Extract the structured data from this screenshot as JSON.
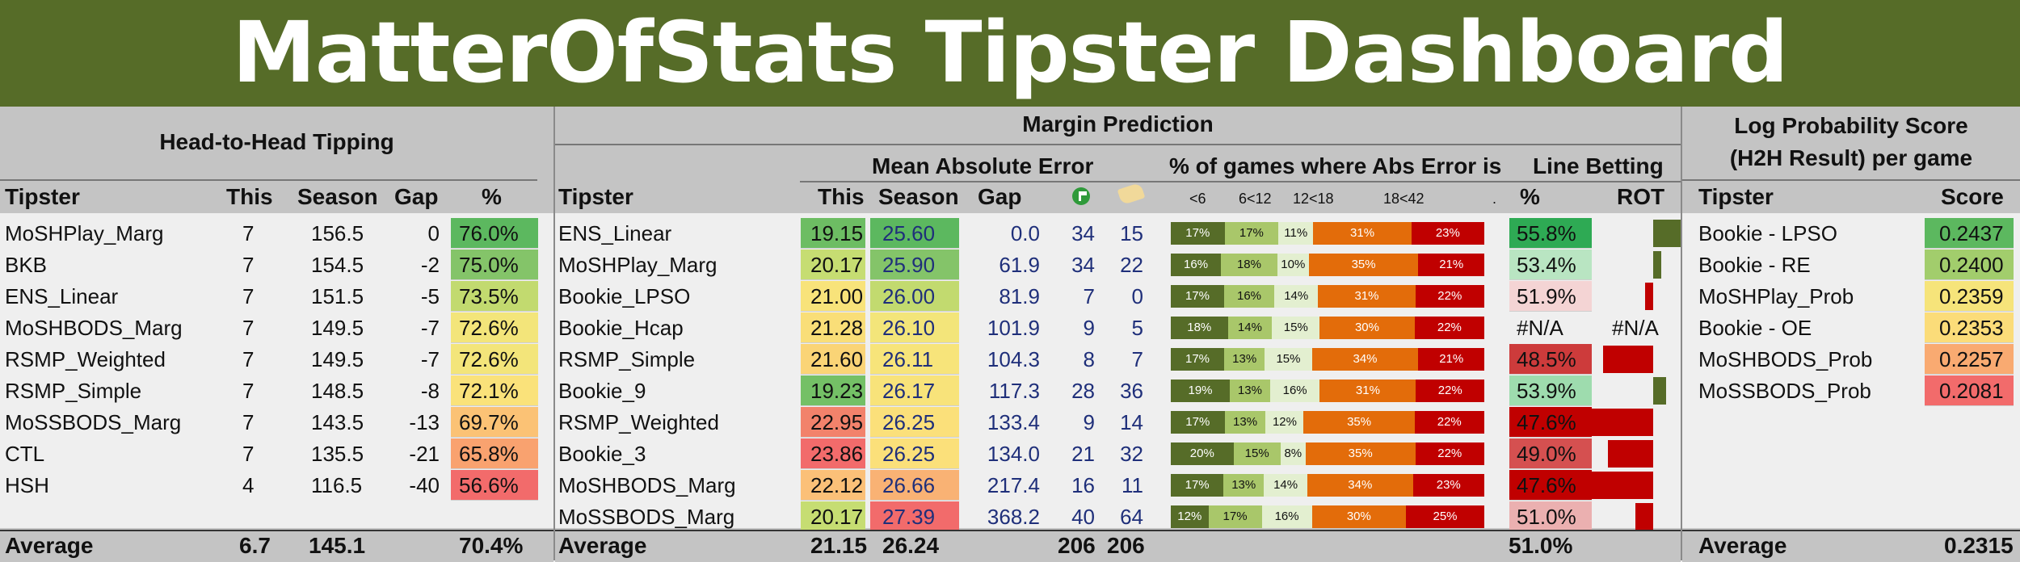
{
  "title": "MatterOfStats Tipster Dashboard",
  "h2h": {
    "section_title": "Head-to-Head Tipping",
    "columns": [
      "Tipster",
      "This",
      "Season",
      "Gap",
      "%"
    ],
    "rows": [
      {
        "tipster": "MoSHPlay_Marg",
        "this": "7",
        "season": "156.5",
        "gap": "0",
        "pct": "76.0%",
        "color": "#5cb85f"
      },
      {
        "tipster": "BKB",
        "this": "7",
        "season": "154.5",
        "gap": "-2",
        "pct": "75.0%",
        "color": "#84c469"
      },
      {
        "tipster": "ENS_Linear",
        "this": "7",
        "season": "151.5",
        "gap": "-5",
        "pct": "73.5%",
        "color": "#c2da6f"
      },
      {
        "tipster": "MoSHBODS_Marg",
        "this": "7",
        "season": "149.5",
        "gap": "-7",
        "pct": "72.6%",
        "color": "#f3e57a"
      },
      {
        "tipster": "RSMP_Weighted",
        "this": "7",
        "season": "149.5",
        "gap": "-7",
        "pct": "72.6%",
        "color": "#f3e57a"
      },
      {
        "tipster": "RSMP_Simple",
        "this": "7",
        "season": "148.5",
        "gap": "-8",
        "pct": "72.1%",
        "color": "#fae27a"
      },
      {
        "tipster": "MoSSBODS_Marg",
        "this": "7",
        "season": "143.5",
        "gap": "-13",
        "pct": "69.7%",
        "color": "#fbc275"
      },
      {
        "tipster": "CTL",
        "this": "7",
        "season": "135.5",
        "gap": "-21",
        "pct": "65.8%",
        "color": "#f9a26f"
      },
      {
        "tipster": "HSH",
        "this": "4",
        "season": "116.5",
        "gap": "-40",
        "pct": "56.6%",
        "color": "#f26b6b"
      }
    ],
    "average": {
      "label": "Average",
      "this": "6.7",
      "season": "145.1",
      "pct": "70.4%"
    }
  },
  "margin": {
    "section_title": "Margin Prediction",
    "mae_title": "Mean Absolute Error",
    "dist_title": "% of games where Abs Error is",
    "line_title": "Line Betting",
    "columns": {
      "tipster": "Tipster",
      "this": "This",
      "season": "Season",
      "gap": "Gap",
      "pct": "%",
      "rot": "ROT"
    },
    "icons": {
      "col5": "green-flag-icon",
      "col6": "boot-icon"
    },
    "dist_labels": [
      "<6",
      "6<12",
      "12<18",
      "18<42",
      "."
    ],
    "rows": [
      {
        "tipster": "ENS_Linear",
        "this": "19.15",
        "this_color": "#6dbd63",
        "season": "25.60",
        "season_color": "#5cb85f",
        "gap": "0.0",
        "c5": "34",
        "c6": "15",
        "dist": [
          17,
          17,
          11,
          31,
          23
        ],
        "dist_txt": [
          "17%",
          "17%",
          "11%",
          "31%",
          "23%"
        ],
        "pct": "55.8%",
        "pct_color": "#2eaa54",
        "rot": 1.0
      },
      {
        "tipster": "MoSHPlay_Marg",
        "this": "20.17",
        "this_color": "#c6dd72",
        "season": "25.90",
        "season_color": "#84c469",
        "gap": "61.9",
        "c5": "34",
        "c6": "22",
        "dist": [
          16,
          18,
          10,
          35,
          21
        ],
        "dist_txt": [
          "16%",
          "18%",
          "10%",
          "35%",
          "21%"
        ],
        "pct": "53.4%",
        "pct_color": "#b9e5c2",
        "rot": 0.25
      },
      {
        "tipster": "Bookie_LPSO",
        "this": "21.00",
        "this_color": "#f8e37a",
        "season": "26.00",
        "season_color": "#c2da6f",
        "gap": "81.9",
        "c5": "7",
        "c6": "0",
        "dist": [
          17,
          16,
          14,
          31,
          22
        ],
        "dist_txt": [
          "17%",
          "16%",
          "14%",
          "31%",
          "22%"
        ],
        "pct": "51.9%",
        "pct_color": "#f4d4d4",
        "rot": -0.25
      },
      {
        "tipster": "Bookie_Hcap",
        "this": "21.28",
        "this_color": "#f9de78",
        "season": "26.10",
        "season_color": "#f3e57a",
        "gap": "101.9",
        "c5": "9",
        "c6": "5",
        "dist": [
          18,
          14,
          15,
          30,
          22
        ],
        "dist_txt": [
          "18%",
          "14%",
          "15%",
          "30%",
          "22%"
        ],
        "pct": "#N/A",
        "pct_color": "",
        "rot": null,
        "rot_txt": "#N/A"
      },
      {
        "tipster": "RSMP_Simple",
        "this": "21.60",
        "this_color": "#fad476",
        "season": "26.11",
        "season_color": "#f7e47a",
        "gap": "104.3",
        "c5": "8",
        "c6": "7",
        "dist": [
          17,
          13,
          15,
          34,
          21
        ],
        "dist_txt": [
          "17%",
          "13%",
          "15%",
          "34%",
          "21%"
        ],
        "pct": "48.5%",
        "pct_color": "#cd3b3b",
        "rot": -1.55
      },
      {
        "tipster": "Bookie_9",
        "this": "19.23",
        "this_color": "#74c066",
        "season": "26.17",
        "season_color": "#f8e37a",
        "gap": "117.3",
        "c5": "28",
        "c6": "36",
        "dist": [
          19,
          13,
          16,
          31,
          22
        ],
        "dist_txt": [
          "19%",
          "13%",
          "16%",
          "31%",
          "22%"
        ],
        "pct": "53.9%",
        "pct_color": "#9edcae",
        "rot": 0.4
      },
      {
        "tipster": "RSMP_Weighted",
        "this": "22.95",
        "this_color": "#f2826b",
        "season": "26.25",
        "season_color": "#fbe07a",
        "gap": "133.4",
        "c5": "9",
        "c6": "14",
        "dist": [
          17,
          13,
          12,
          35,
          22
        ],
        "dist_txt": [
          "17%",
          "13%",
          "12%",
          "35%",
          "22%"
        ],
        "pct": "47.6%",
        "pct_color": "#c00000",
        "rot": -1.9
      },
      {
        "tipster": "Bookie_3",
        "this": "23.86",
        "this_color": "#f26b6b",
        "season": "26.25",
        "season_color": "#fbe07a",
        "gap": "134.0",
        "c5": "21",
        "c6": "32",
        "dist": [
          20,
          15,
          8,
          35,
          22
        ],
        "dist_txt": [
          "20%",
          "15%",
          "8%",
          "35%",
          "22%"
        ],
        "pct": "49.0%",
        "pct_color": "#d55050",
        "rot": -1.4
      },
      {
        "tipster": "MoSHBODS_Marg",
        "this": "22.12",
        "this_color": "#fbc078",
        "season": "26.66",
        "season_color": "#f9b274",
        "gap": "217.4",
        "c5": "16",
        "c6": "11",
        "dist": [
          17,
          13,
          14,
          34,
          23
        ],
        "dist_txt": [
          "17%",
          "13%",
          "14%",
          "34%",
          "23%"
        ],
        "pct": "47.6%",
        "pct_color": "#c00000",
        "rot": -1.9
      },
      {
        "tipster": "MoSSBODS_Marg",
        "this": "20.17",
        "this_color": "#c6dd72",
        "season": "27.39",
        "season_color": "#f26b6b",
        "gap": "368.2",
        "c5": "40",
        "c6": "64",
        "dist": [
          12,
          17,
          16,
          30,
          25
        ],
        "dist_txt": [
          "12%",
          "17%",
          "16%",
          "30%",
          "25%"
        ],
        "pct": "51.0%",
        "pct_color": "#ebb0b0",
        "rot": -0.55
      }
    ],
    "dist_colors": [
      "#566c28",
      "#a9c76a",
      "#e3efd0",
      "#e36c0a",
      "#c00000"
    ],
    "average": {
      "label": "Average",
      "this": "21.15",
      "season": "26.24",
      "c5": "206",
      "c6": "206",
      "pct": "51.0%"
    }
  },
  "logprob": {
    "title_line1": "Log Probability Score",
    "title_line2": "(H2H Result) per game",
    "columns": [
      "Tipster",
      "Score"
    ],
    "rows": [
      {
        "tipster": "Bookie - LPSO",
        "score": "0.2437",
        "color": "#5cb85f"
      },
      {
        "tipster": "Bookie - RE",
        "score": "0.2400",
        "color": "#a2cd6c"
      },
      {
        "tipster": "MoSHPlay_Prob",
        "score": "0.2359",
        "color": "#f6e47a"
      },
      {
        "tipster": "Bookie - OE",
        "score": "0.2353",
        "color": "#fbdc79"
      },
      {
        "tipster": "MoSHBODS_Prob",
        "score": "0.2257",
        "color": "#f9aa71"
      },
      {
        "tipster": "MoSSBODS_Prob",
        "score": "0.2081",
        "color": "#f26b6b"
      }
    ],
    "average": {
      "label": "Average",
      "score": "0.2315"
    }
  }
}
